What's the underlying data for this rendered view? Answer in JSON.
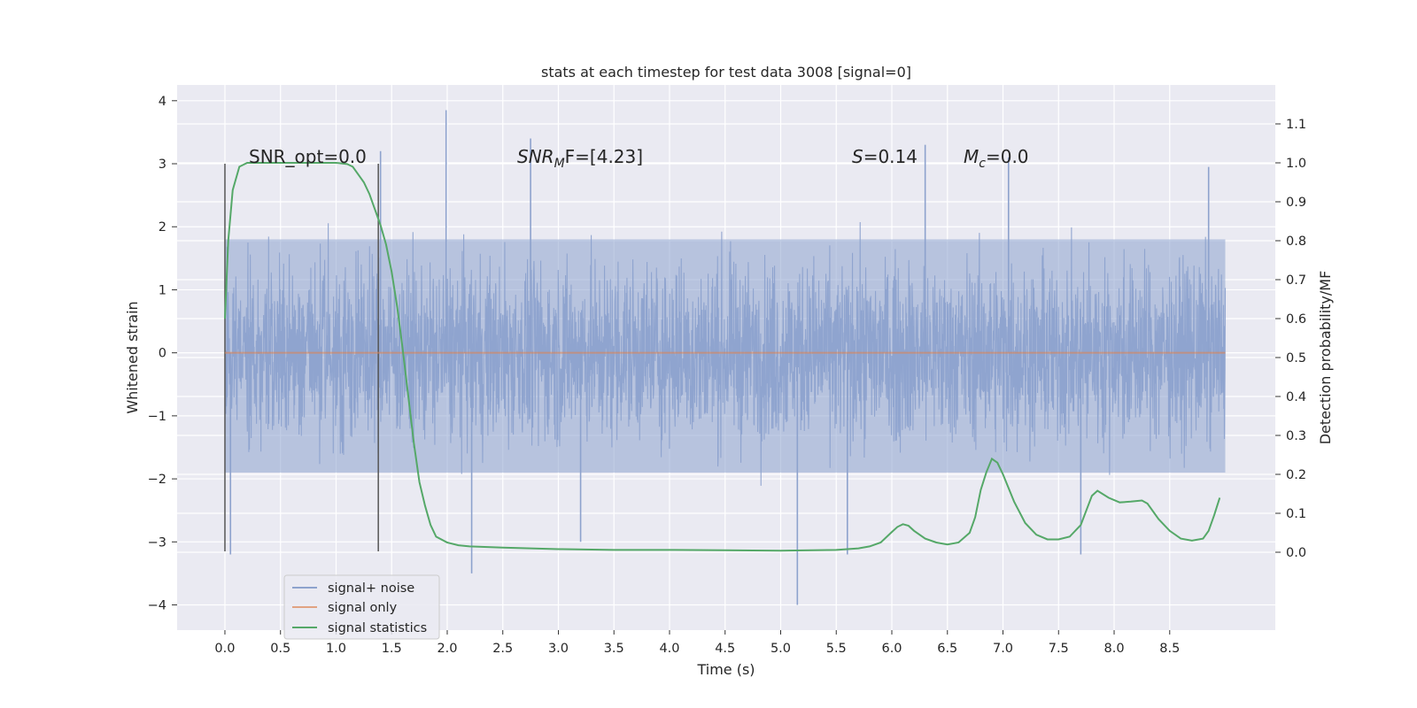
{
  "chart_data": {
    "type": "line",
    "title": "stats at each timestep for test data 3008 [signal=0]",
    "xlabel": "Time (s)",
    "ylabel": "Whitened strain",
    "y2label": "Detection probability/MF",
    "xlim": [
      -0.43,
      9.45
    ],
    "ylim": [
      -4.4,
      4.25
    ],
    "y2lim": [
      -0.2,
      1.2
    ],
    "x_ticks": [
      0.0,
      0.5,
      1.0,
      1.5,
      2.0,
      2.5,
      3.0,
      3.5,
      4.0,
      4.5,
      5.0,
      5.5,
      6.0,
      6.5,
      7.0,
      7.5,
      8.0,
      8.5
    ],
    "x_tick_labels": [
      "0.0",
      "0.5",
      "1.0",
      "1.5",
      "2.0",
      "2.5",
      "3.0",
      "3.5",
      "4.0",
      "4.5",
      "5.0",
      "5.5",
      "6.0",
      "6.5",
      "7.0",
      "7.5",
      "8.0",
      "8.5"
    ],
    "y_ticks": [
      4,
      3,
      2,
      1,
      0,
      -1,
      -2,
      -3,
      -4
    ],
    "y_tick_labels": [
      "4",
      "3",
      "2",
      "1",
      "0",
      "−1",
      "−2",
      "−3",
      "−4"
    ],
    "y2_ticks": [
      1.1,
      1.0,
      0.9,
      0.8,
      0.7,
      0.6,
      0.5,
      0.4,
      0.3,
      0.2,
      0.1,
      0.0
    ],
    "y2_tick_labels": [
      "1.1",
      "1.0",
      "0.9",
      "0.8",
      "0.7",
      "0.6",
      "0.5",
      "0.4",
      "0.3",
      "0.2",
      "0.1",
      "0.0"
    ],
    "grid": true,
    "legend_position": "lower-left",
    "noise": {
      "name": "signal+ noise",
      "color": "#8da2cd",
      "t_start": 0.0,
      "t_end": 9.0,
      "spikes": [
        {
          "t": 1.99,
          "v": 3.85
        },
        {
          "t": 2.22,
          "v": -3.5
        },
        {
          "t": 5.15,
          "v": -4.0
        },
        {
          "t": 2.75,
          "v": 3.4
        },
        {
          "t": 0.05,
          "v": -3.2
        },
        {
          "t": 1.4,
          "v": 3.2
        },
        {
          "t": 3.2,
          "v": -3.0
        },
        {
          "t": 6.3,
          "v": 3.3
        },
        {
          "t": 7.05,
          "v": 3.1
        },
        {
          "t": 7.7,
          "v": -3.2
        },
        {
          "t": 8.85,
          "v": 2.95
        },
        {
          "t": 5.6,
          "v": -3.2
        }
      ]
    },
    "signal_only": {
      "name": "signal only",
      "color": "#dd8452",
      "value": 0.0
    },
    "statistics": {
      "name": "signal statistics",
      "color": "#55a868",
      "x": [
        0.0,
        0.03,
        0.07,
        0.13,
        0.2,
        0.3,
        0.5,
        0.8,
        1.0,
        1.1,
        1.15,
        1.2,
        1.25,
        1.3,
        1.35,
        1.4,
        1.45,
        1.5,
        1.55,
        1.6,
        1.65,
        1.7,
        1.75,
        1.8,
        1.85,
        1.9,
        2.0,
        2.1,
        2.2,
        2.5,
        3.0,
        3.5,
        4.0,
        4.5,
        5.0,
        5.5,
        5.7,
        5.8,
        5.9,
        6.0,
        6.05,
        6.1,
        6.15,
        6.2,
        6.3,
        6.4,
        6.5,
        6.6,
        6.7,
        6.75,
        6.8,
        6.85,
        6.9,
        6.95,
        7.0,
        7.1,
        7.2,
        7.3,
        7.4,
        7.5,
        7.6,
        7.7,
        7.8,
        7.85,
        7.95,
        8.05,
        8.15,
        8.25,
        8.3,
        8.4,
        8.5,
        8.6,
        8.7,
        8.8,
        8.85,
        8.9,
        8.95
      ],
      "values": [
        0.6,
        0.8,
        0.93,
        0.99,
        1.0,
        1.0,
        1.0,
        1.0,
        1.0,
        0.997,
        0.99,
        0.97,
        0.95,
        0.92,
        0.88,
        0.84,
        0.79,
        0.72,
        0.63,
        0.52,
        0.4,
        0.28,
        0.18,
        0.12,
        0.07,
        0.04,
        0.025,
        0.018,
        0.015,
        0.012,
        0.008,
        0.006,
        0.006,
        0.005,
        0.004,
        0.006,
        0.01,
        0.015,
        0.025,
        0.052,
        0.065,
        0.072,
        0.068,
        0.055,
        0.035,
        0.025,
        0.02,
        0.025,
        0.05,
        0.09,
        0.16,
        0.205,
        0.24,
        0.23,
        0.2,
        0.13,
        0.075,
        0.045,
        0.033,
        0.033,
        0.04,
        0.07,
        0.145,
        0.158,
        0.14,
        0.128,
        0.13,
        0.133,
        0.125,
        0.085,
        0.055,
        0.035,
        0.03,
        0.035,
        0.055,
        0.095,
        0.14
      ]
    },
    "markers": [
      {
        "t": 0.0
      },
      {
        "t": 1.38
      }
    ],
    "annotations": {
      "snr_opt": "SNR_opt=0.0",
      "snr_mf_base": "SNR",
      "snr_mf_sub": "M",
      "snr_mf_rest": "F=[4.23]",
      "s_italic": "S",
      "s_rest": "=0.14",
      "mc_italic": "M",
      "mc_sub": "c",
      "mc_rest": "=0.0"
    }
  }
}
